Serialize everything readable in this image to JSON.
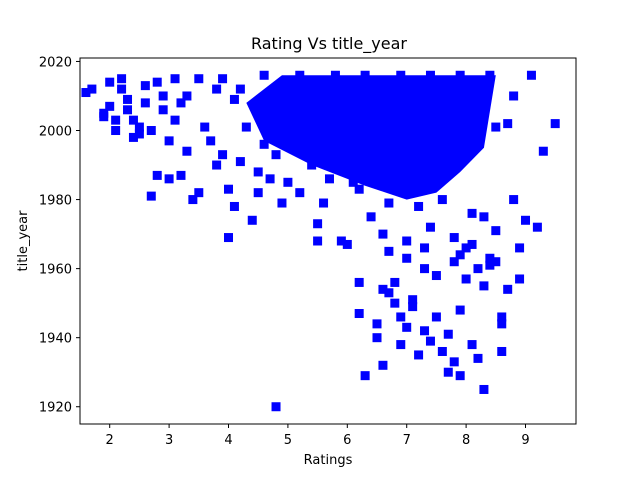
{
  "chart_data": {
    "type": "scatter",
    "title": "Rating Vs title_year",
    "xlabel": "Ratings",
    "ylabel": "title_year",
    "xlim": [
      1.5,
      9.85
    ],
    "ylim": [
      1915,
      2021
    ],
    "x_ticks": [
      2,
      3,
      4,
      5,
      6,
      7,
      8,
      9
    ],
    "y_ticks": [
      1920,
      1940,
      1960,
      1980,
      2000,
      2020
    ],
    "marker": "square",
    "color": "#0000ff",
    "grid": false,
    "legend": "none",
    "points": [
      [
        1.6,
        2011
      ],
      [
        1.7,
        2012
      ],
      [
        1.9,
        2004
      ],
      [
        1.9,
        2005
      ],
      [
        2.0,
        2007
      ],
      [
        2.0,
        2014
      ],
      [
        2.1,
        2003
      ],
      [
        2.1,
        2000
      ],
      [
        2.2,
        2015
      ],
      [
        2.2,
        2012
      ],
      [
        2.3,
        2009
      ],
      [
        2.3,
        2006
      ],
      [
        2.4,
        2003
      ],
      [
        2.4,
        1998
      ],
      [
        2.5,
        2001
      ],
      [
        2.5,
        1999
      ],
      [
        2.6,
        2013
      ],
      [
        2.6,
        2008
      ],
      [
        2.7,
        1981
      ],
      [
        2.7,
        2000
      ],
      [
        2.8,
        2014
      ],
      [
        2.8,
        1987
      ],
      [
        2.9,
        2010
      ],
      [
        2.9,
        2006
      ],
      [
        3.0,
        1986
      ],
      [
        3.0,
        1997
      ],
      [
        3.1,
        2015
      ],
      [
        3.1,
        2003
      ],
      [
        3.2,
        1987
      ],
      [
        3.3,
        1994
      ],
      [
        3.3,
        2010
      ],
      [
        3.4,
        1980
      ],
      [
        3.5,
        1982
      ],
      [
        3.5,
        2015
      ],
      [
        3.6,
        2001
      ],
      [
        3.7,
        1997
      ],
      [
        3.8,
        1990
      ],
      [
        3.8,
        2012
      ],
      [
        3.9,
        1993
      ],
      [
        4.0,
        1969
      ],
      [
        4.0,
        1983
      ],
      [
        4.1,
        1978
      ],
      [
        4.1,
        2009
      ],
      [
        4.2,
        1991
      ],
      [
        4.3,
        2001
      ],
      [
        4.4,
        1974
      ],
      [
        4.5,
        1988
      ],
      [
        4.5,
        1982
      ],
      [
        4.6,
        1996
      ],
      [
        4.7,
        1986
      ],
      [
        4.8,
        1920
      ],
      [
        4.8,
        1993
      ],
      [
        4.9,
        1979
      ],
      [
        5.0,
        1985
      ],
      [
        5.0,
        2011
      ],
      [
        5.1,
        1995
      ],
      [
        5.2,
        1982
      ],
      [
        5.3,
        2003
      ],
      [
        5.4,
        1990
      ],
      [
        5.5,
        1968
      ],
      [
        5.5,
        1973
      ],
      [
        5.6,
        2009
      ],
      [
        5.7,
        1986
      ],
      [
        5.8,
        1993
      ],
      [
        5.9,
        1968
      ],
      [
        6.0,
        1967
      ],
      [
        6.0,
        1998
      ],
      [
        6.1,
        1985
      ],
      [
        6.2,
        1956
      ],
      [
        6.2,
        1947
      ],
      [
        6.3,
        1929
      ],
      [
        6.4,
        1975
      ],
      [
        6.5,
        1944
      ],
      [
        6.5,
        1940
      ],
      [
        6.6,
        1954
      ],
      [
        6.6,
        1932
      ],
      [
        6.7,
        1965
      ],
      [
        6.7,
        1953
      ],
      [
        6.8,
        1956
      ],
      [
        6.8,
        1950
      ],
      [
        6.9,
        1946
      ],
      [
        6.9,
        1938
      ],
      [
        7.0,
        1963
      ],
      [
        7.0,
        1943
      ],
      [
        7.1,
        1951
      ],
      [
        7.1,
        1949
      ],
      [
        7.2,
        1935
      ],
      [
        7.2,
        1978
      ],
      [
        7.3,
        1960
      ],
      [
        7.3,
        1942
      ],
      [
        7.4,
        1939
      ],
      [
        7.5,
        1958
      ],
      [
        7.5,
        1946
      ],
      [
        7.6,
        1936
      ],
      [
        7.7,
        1930
      ],
      [
        7.7,
        1941
      ],
      [
        7.8,
        1933
      ],
      [
        7.8,
        1962
      ],
      [
        7.9,
        1929
      ],
      [
        7.9,
        1948
      ],
      [
        8.0,
        1957
      ],
      [
        8.1,
        1938
      ],
      [
        8.1,
        1967
      ],
      [
        8.2,
        1934
      ],
      [
        8.3,
        1925
      ],
      [
        8.3,
        1955
      ],
      [
        8.4,
        1963
      ],
      [
        8.5,
        1971
      ],
      [
        8.6,
        1936
      ],
      [
        8.6,
        1946
      ],
      [
        8.7,
        1954
      ],
      [
        8.8,
        1980
      ],
      [
        8.8,
        2010
      ],
      [
        8.9,
        1966
      ],
      [
        8.9,
        1957
      ],
      [
        9.0,
        1974
      ],
      [
        9.1,
        2016
      ],
      [
        9.2,
        1972
      ],
      [
        9.3,
        1994
      ],
      [
        9.5,
        2002
      ],
      [
        3.2,
        2008
      ],
      [
        3.9,
        2015
      ],
      [
        4.6,
        2016
      ],
      [
        5.2,
        2016
      ],
      [
        5.8,
        2016
      ],
      [
        6.3,
        2016
      ],
      [
        6.9,
        2016
      ],
      [
        7.4,
        2016
      ],
      [
        7.9,
        2016
      ],
      [
        8.4,
        2016
      ],
      [
        6.1,
        2005
      ],
      [
        6.6,
        1999
      ],
      [
        7.0,
        2004
      ],
      [
        7.5,
        1995
      ],
      [
        5.7,
        2003
      ],
      [
        6.4,
        2010
      ],
      [
        7.2,
        1990
      ],
      [
        7.7,
        1999
      ],
      [
        8.0,
        1995
      ],
      [
        8.5,
        2001
      ],
      [
        4.2,
        2012
      ],
      [
        4.9,
        2006
      ],
      [
        5.4,
        2012
      ],
      [
        6.8,
        2009
      ],
      [
        7.3,
        2012
      ],
      [
        7.6,
        2008
      ],
      [
        8.2,
        2003
      ],
      [
        8.7,
        2002
      ],
      [
        6.0,
        2001
      ],
      [
        6.9,
        1992
      ],
      [
        5.9,
        1989
      ],
      [
        6.5,
        1987
      ],
      [
        7.1,
        1984
      ],
      [
        7.6,
        1980
      ],
      [
        8.1,
        1976
      ],
      [
        8.3,
        1975
      ],
      [
        6.2,
        1983
      ],
      [
        6.7,
        1979
      ],
      [
        7.4,
        1972
      ],
      [
        7.8,
        1969
      ],
      [
        8.0,
        1966
      ],
      [
        8.4,
        1961
      ],
      [
        5.6,
        1979
      ],
      [
        6.6,
        1970
      ],
      [
        7.0,
        1968
      ],
      [
        7.3,
        1966
      ],
      [
        7.9,
        1964
      ],
      [
        8.2,
        1960
      ],
      [
        8.5,
        1962
      ],
      [
        8.6,
        1944
      ]
    ]
  }
}
